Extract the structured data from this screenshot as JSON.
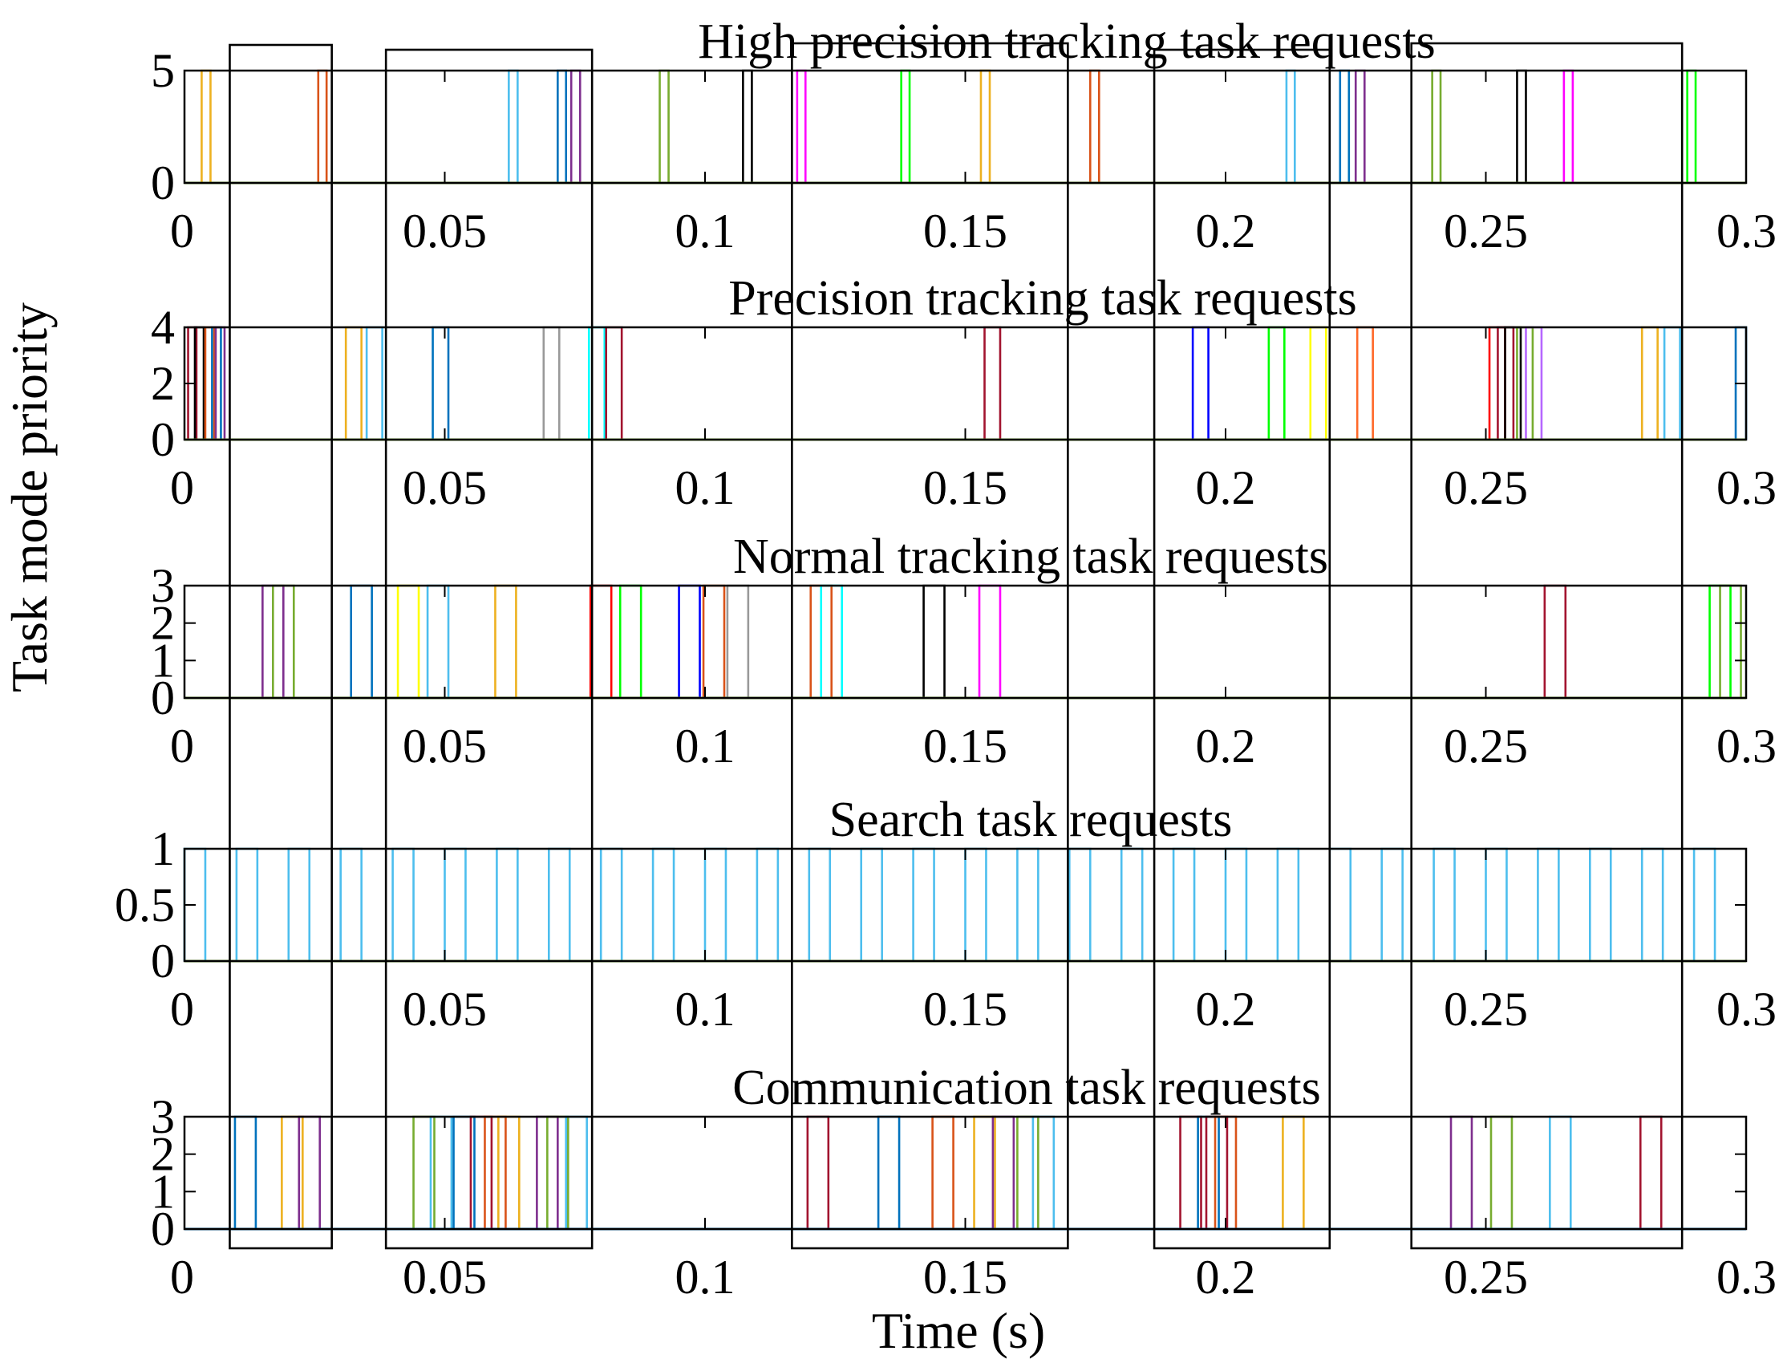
{
  "figure": {
    "ylabel": "Task mode priority",
    "xlabel": "Time (s)",
    "baseline_color": "#77ac30",
    "highlight_windows": [
      [
        0.0087,
        0.0283
      ],
      [
        0.0387,
        0.0783
      ],
      [
        0.1167,
        0.1697
      ],
      [
        0.1863,
        0.22
      ],
      [
        0.2357,
        0.2877
      ]
    ]
  },
  "chart_data": [
    {
      "type": "line",
      "title": "High precision tracking task requests",
      "xlabel": "",
      "ylabel": "",
      "xlim": [
        0,
        0.3
      ],
      "ylim": [
        0,
        5
      ],
      "xticks": [
        "0",
        "0.05",
        "0.1",
        "0.15",
        "0.2",
        "0.25",
        "0.3"
      ],
      "yticks": [
        "0",
        "5"
      ],
      "ytick_values": [
        0,
        5
      ],
      "pulses": [
        {
          "start": 0.0033,
          "end": 0.005,
          "level": 5,
          "color": "#edb120"
        },
        {
          "start": 0.0257,
          "end": 0.0273,
          "level": 5,
          "color": "#d95319"
        },
        {
          "start": 0.0623,
          "end": 0.064,
          "level": 5,
          "color": "#4dbeee"
        },
        {
          "start": 0.0717,
          "end": 0.0733,
          "level": 5,
          "color": "#0072bd"
        },
        {
          "start": 0.0743,
          "end": 0.076,
          "level": 5,
          "color": "#7e2f8e"
        },
        {
          "start": 0.0913,
          "end": 0.093,
          "level": 5,
          "color": "#77ac30"
        },
        {
          "start": 0.1073,
          "end": 0.109,
          "level": 5,
          "color": "#000000"
        },
        {
          "start": 0.1177,
          "end": 0.1193,
          "level": 5,
          "color": "#ff00ff"
        },
        {
          "start": 0.1377,
          "end": 0.1393,
          "level": 5,
          "color": "#00ff00"
        },
        {
          "start": 0.153,
          "end": 0.1547,
          "level": 5,
          "color": "#edb120"
        },
        {
          "start": 0.174,
          "end": 0.1757,
          "level": 5,
          "color": "#d95319"
        },
        {
          "start": 0.2117,
          "end": 0.2133,
          "level": 5,
          "color": "#4dbeee"
        },
        {
          "start": 0.222,
          "end": 0.2237,
          "level": 5,
          "color": "#0072bd"
        },
        {
          "start": 0.225,
          "end": 0.2267,
          "level": 5,
          "color": "#7e2f8e"
        },
        {
          "start": 0.2397,
          "end": 0.2413,
          "level": 5,
          "color": "#77ac30"
        },
        {
          "start": 0.256,
          "end": 0.2577,
          "level": 5,
          "color": "#000000"
        },
        {
          "start": 0.265,
          "end": 0.2667,
          "level": 5,
          "color": "#ff00ff"
        },
        {
          "start": 0.2887,
          "end": 0.2903,
          "level": 5,
          "color": "#00ff00"
        }
      ]
    },
    {
      "type": "line",
      "title": "Precision tracking task requests",
      "xlabel": "",
      "ylabel": "",
      "xlim": [
        0,
        0.3
      ],
      "ylim": [
        0,
        4
      ],
      "xticks": [
        "0",
        "0.05",
        "0.1",
        "0.15",
        "0.2",
        "0.25",
        "0.3"
      ],
      "yticks": [
        "0",
        "2",
        "4"
      ],
      "ytick_values": [
        0,
        2,
        4
      ],
      "pulses": [
        {
          "start": 0.0007,
          "end": 0.0023,
          "level": 4,
          "color": "#a2142f"
        },
        {
          "start": 0.002,
          "end": 0.0037,
          "level": 4,
          "color": "#000000"
        },
        {
          "start": 0.004,
          "end": 0.0057,
          "level": 4,
          "color": "#d95319"
        },
        {
          "start": 0.0053,
          "end": 0.007,
          "level": 4,
          "color": "#0072bd"
        },
        {
          "start": 0.006,
          "end": 0.0077,
          "level": 4,
          "color": "#7e2f8e"
        },
        {
          "start": 0.031,
          "end": 0.034,
          "level": 4,
          "color": "#edb120"
        },
        {
          "start": 0.035,
          "end": 0.038,
          "level": 4,
          "color": "#4dbeee"
        },
        {
          "start": 0.0477,
          "end": 0.0507,
          "level": 4,
          "color": "#0072bd"
        },
        {
          "start": 0.069,
          "end": 0.072,
          "level": 4,
          "color": "#999999"
        },
        {
          "start": 0.0777,
          "end": 0.0807,
          "level": 4,
          "color": "#00ffff"
        },
        {
          "start": 0.081,
          "end": 0.084,
          "level": 4,
          "color": "#a2142f"
        },
        {
          "start": 0.1537,
          "end": 0.1567,
          "level": 4,
          "color": "#a2142f"
        },
        {
          "start": 0.1937,
          "end": 0.1967,
          "level": 4,
          "color": "#0000ff"
        },
        {
          "start": 0.2083,
          "end": 0.2113,
          "level": 4,
          "color": "#00ff00"
        },
        {
          "start": 0.2163,
          "end": 0.2193,
          "level": 4,
          "color": "#ffff00"
        },
        {
          "start": 0.2253,
          "end": 0.2283,
          "level": 4,
          "color": "#ff6929"
        },
        {
          "start": 0.2507,
          "end": 0.2537,
          "level": 4,
          "color": "#ff0000"
        },
        {
          "start": 0.2523,
          "end": 0.2553,
          "level": 4,
          "color": "#a2142f"
        },
        {
          "start": 0.2537,
          "end": 0.2567,
          "level": 4,
          "color": "#000000"
        },
        {
          "start": 0.256,
          "end": 0.259,
          "level": 4,
          "color": "#77ac30"
        },
        {
          "start": 0.2577,
          "end": 0.2607,
          "level": 4,
          "color": "#b667ff"
        },
        {
          "start": 0.28,
          "end": 0.283,
          "level": 4,
          "color": "#edb120"
        },
        {
          "start": 0.2843,
          "end": 0.2873,
          "level": 4,
          "color": "#4dbeee"
        },
        {
          "start": 0.298,
          "end": 0.3,
          "level": 4,
          "color": "#0072bd"
        }
      ]
    },
    {
      "type": "line",
      "title": "Normal tracking task requests",
      "xlabel": "",
      "ylabel": "",
      "xlim": [
        0,
        0.3
      ],
      "ylim": [
        0,
        3
      ],
      "xticks": [
        "0",
        "0.05",
        "0.1",
        "0.15",
        "0.2",
        "0.25",
        "0.3"
      ],
      "yticks": [
        "0",
        "1",
        "2",
        "3"
      ],
      "ytick_values": [
        0,
        1,
        2,
        3
      ],
      "pulses": [
        {
          "start": 0.015,
          "end": 0.019,
          "level": 3,
          "color": "#7e2f8e"
        },
        {
          "start": 0.017,
          "end": 0.021,
          "level": 3,
          "color": "#77ac30"
        },
        {
          "start": 0.032,
          "end": 0.036,
          "level": 3,
          "color": "#0072bd"
        },
        {
          "start": 0.041,
          "end": 0.045,
          "level": 3,
          "color": "#ffff00"
        },
        {
          "start": 0.0467,
          "end": 0.0507,
          "level": 3,
          "color": "#4dbeee"
        },
        {
          "start": 0.0597,
          "end": 0.0637,
          "level": 3,
          "color": "#edb120"
        },
        {
          "start": 0.078,
          "end": 0.082,
          "level": 3,
          "color": "#ff0000"
        },
        {
          "start": 0.0837,
          "end": 0.0877,
          "level": 3,
          "color": "#00ff00"
        },
        {
          "start": 0.095,
          "end": 0.099,
          "level": 3,
          "color": "#0000ff"
        },
        {
          "start": 0.0997,
          "end": 0.1037,
          "level": 3,
          "color": "#d95319"
        },
        {
          "start": 0.1043,
          "end": 0.1083,
          "level": 3,
          "color": "#999999"
        },
        {
          "start": 0.1203,
          "end": 0.1243,
          "level": 3,
          "color": "#d95319"
        },
        {
          "start": 0.1223,
          "end": 0.1263,
          "level": 3,
          "color": "#00ffff"
        },
        {
          "start": 0.142,
          "end": 0.146,
          "level": 3,
          "color": "#000000"
        },
        {
          "start": 0.1527,
          "end": 0.1567,
          "level": 3,
          "color": "#ff00ff"
        },
        {
          "start": 0.2613,
          "end": 0.2653,
          "level": 3,
          "color": "#a2142f"
        },
        {
          "start": 0.293,
          "end": 0.297,
          "level": 3,
          "color": "#00ff00"
        },
        {
          "start": 0.295,
          "end": 0.299,
          "level": 3,
          "color": "#77ac30"
        }
      ]
    },
    {
      "type": "line",
      "title": "Search task requests",
      "xlabel": "",
      "ylabel": "",
      "xlim": [
        0,
        0.3
      ],
      "ylim": [
        0,
        1
      ],
      "xticks": [
        "0",
        "0.05",
        "0.1",
        "0.15",
        "0.2",
        "0.25",
        "0.3"
      ],
      "yticks": [
        "0",
        "0.5",
        "1"
      ],
      "ytick_values": [
        0,
        0.5,
        1
      ],
      "pulses": [
        {
          "start": 0.0,
          "end": 0.004,
          "level": 1,
          "color": "#4dbeee"
        },
        {
          "start": 0.01,
          "end": 0.014,
          "level": 1,
          "color": "#4dbeee"
        },
        {
          "start": 0.02,
          "end": 0.024,
          "level": 1,
          "color": "#4dbeee"
        },
        {
          "start": 0.03,
          "end": 0.034,
          "level": 1,
          "color": "#4dbeee"
        },
        {
          "start": 0.04,
          "end": 0.044,
          "level": 1,
          "color": "#4dbeee"
        },
        {
          "start": 0.05,
          "end": 0.054,
          "level": 1,
          "color": "#4dbeee"
        },
        {
          "start": 0.06,
          "end": 0.064,
          "level": 1,
          "color": "#4dbeee"
        },
        {
          "start": 0.07,
          "end": 0.074,
          "level": 1,
          "color": "#4dbeee"
        },
        {
          "start": 0.08,
          "end": 0.084,
          "level": 1,
          "color": "#4dbeee"
        },
        {
          "start": 0.09,
          "end": 0.094,
          "level": 1,
          "color": "#4dbeee"
        },
        {
          "start": 0.1,
          "end": 0.104,
          "level": 1,
          "color": "#4dbeee"
        },
        {
          "start": 0.11,
          "end": 0.114,
          "level": 1,
          "color": "#4dbeee"
        },
        {
          "start": 0.12,
          "end": 0.124,
          "level": 1,
          "color": "#4dbeee"
        },
        {
          "start": 0.13,
          "end": 0.134,
          "level": 1,
          "color": "#4dbeee"
        },
        {
          "start": 0.14,
          "end": 0.144,
          "level": 1,
          "color": "#4dbeee"
        },
        {
          "start": 0.15,
          "end": 0.154,
          "level": 1,
          "color": "#4dbeee"
        },
        {
          "start": 0.16,
          "end": 0.164,
          "level": 1,
          "color": "#4dbeee"
        },
        {
          "start": 0.17,
          "end": 0.174,
          "level": 1,
          "color": "#4dbeee"
        },
        {
          "start": 0.18,
          "end": 0.184,
          "level": 1,
          "color": "#4dbeee"
        },
        {
          "start": 0.19,
          "end": 0.194,
          "level": 1,
          "color": "#4dbeee"
        },
        {
          "start": 0.2,
          "end": 0.204,
          "level": 1,
          "color": "#4dbeee"
        },
        {
          "start": 0.21,
          "end": 0.214,
          "level": 1,
          "color": "#4dbeee"
        },
        {
          "start": 0.22,
          "end": 0.224,
          "level": 1,
          "color": "#4dbeee"
        },
        {
          "start": 0.23,
          "end": 0.234,
          "level": 1,
          "color": "#4dbeee"
        },
        {
          "start": 0.24,
          "end": 0.244,
          "level": 1,
          "color": "#4dbeee"
        },
        {
          "start": 0.25,
          "end": 0.254,
          "level": 1,
          "color": "#4dbeee"
        },
        {
          "start": 0.26,
          "end": 0.264,
          "level": 1,
          "color": "#4dbeee"
        },
        {
          "start": 0.27,
          "end": 0.274,
          "level": 1,
          "color": "#4dbeee"
        },
        {
          "start": 0.28,
          "end": 0.284,
          "level": 1,
          "color": "#4dbeee"
        },
        {
          "start": 0.29,
          "end": 0.294,
          "level": 1,
          "color": "#4dbeee"
        }
      ]
    },
    {
      "type": "line",
      "title": "Communication task requests",
      "xlabel": "",
      "ylabel": "",
      "xlim": [
        0,
        0.3
      ],
      "ylim": [
        0,
        3
      ],
      "xticks": [
        "0",
        "0.05",
        "0.1",
        "0.15",
        "0.2",
        "0.25",
        "0.3"
      ],
      "yticks": [
        "0",
        "1",
        "2",
        "3"
      ],
      "ytick_values": [
        0,
        1,
        2,
        3
      ],
      "pulses": [
        {
          "start": 0.0097,
          "end": 0.0137,
          "level": 3,
          "color": "#0072bd"
        },
        {
          "start": 0.0187,
          "end": 0.0227,
          "level": 3,
          "color": "#edb120"
        },
        {
          "start": 0.022,
          "end": 0.026,
          "level": 3,
          "color": "#7e2f8e"
        },
        {
          "start": 0.044,
          "end": 0.048,
          "level": 3,
          "color": "#77ac30"
        },
        {
          "start": 0.0473,
          "end": 0.0513,
          "level": 3,
          "color": "#4dbeee"
        },
        {
          "start": 0.0517,
          "end": 0.0557,
          "level": 3,
          "color": "#0072bd"
        },
        {
          "start": 0.055,
          "end": 0.059,
          "level": 3,
          "color": "#a2142f"
        },
        {
          "start": 0.0577,
          "end": 0.0617,
          "level": 3,
          "color": "#d95319"
        },
        {
          "start": 0.0603,
          "end": 0.0643,
          "level": 3,
          "color": "#edb120"
        },
        {
          "start": 0.0677,
          "end": 0.0717,
          "level": 3,
          "color": "#7e2f8e"
        },
        {
          "start": 0.0697,
          "end": 0.0737,
          "level": 3,
          "color": "#77ac30"
        },
        {
          "start": 0.0733,
          "end": 0.0773,
          "level": 3,
          "color": "#4dbeee"
        },
        {
          "start": 0.1197,
          "end": 0.1237,
          "level": 3,
          "color": "#a2142f"
        },
        {
          "start": 0.1333,
          "end": 0.1373,
          "level": 3,
          "color": "#0072bd"
        },
        {
          "start": 0.1437,
          "end": 0.1477,
          "level": 3,
          "color": "#d95319"
        },
        {
          "start": 0.1517,
          "end": 0.1557,
          "level": 3,
          "color": "#edb120"
        },
        {
          "start": 0.1553,
          "end": 0.1593,
          "level": 3,
          "color": "#7e2f8e"
        },
        {
          "start": 0.16,
          "end": 0.164,
          "level": 3,
          "color": "#77ac30"
        },
        {
          "start": 0.163,
          "end": 0.167,
          "level": 3,
          "color": "#4dbeee"
        },
        {
          "start": 0.1913,
          "end": 0.1953,
          "level": 3,
          "color": "#a2142f"
        },
        {
          "start": 0.1947,
          "end": 0.1987,
          "level": 3,
          "color": "#0072bd"
        },
        {
          "start": 0.1963,
          "end": 0.2003,
          "level": 3,
          "color": "#a2142f"
        },
        {
          "start": 0.198,
          "end": 0.202,
          "level": 3,
          "color": "#d95319"
        },
        {
          "start": 0.211,
          "end": 0.215,
          "level": 3,
          "color": "#edb120"
        },
        {
          "start": 0.2433,
          "end": 0.2473,
          "level": 3,
          "color": "#7e2f8e"
        },
        {
          "start": 0.251,
          "end": 0.255,
          "level": 3,
          "color": "#77ac30"
        },
        {
          "start": 0.2623,
          "end": 0.2663,
          "level": 3,
          "color": "#4dbeee"
        },
        {
          "start": 0.2797,
          "end": 0.2837,
          "level": 3,
          "color": "#a2142f"
        }
      ]
    }
  ]
}
